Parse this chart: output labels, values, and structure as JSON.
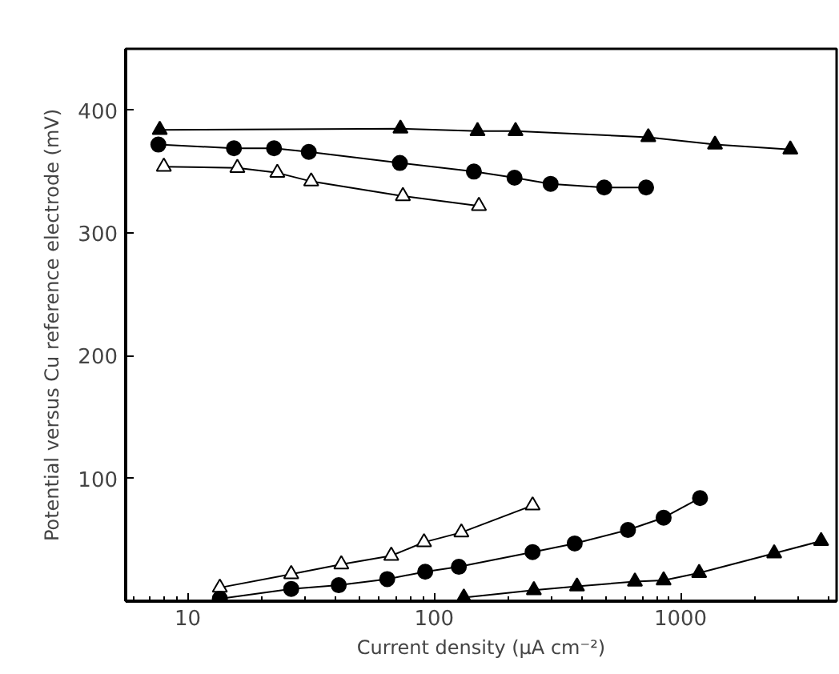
{
  "chart_data": {
    "type": "line",
    "xlabel": "Current density (μA cm⁻²)",
    "ylabel": "Potential versus Cu reference electrode (mV)",
    "log": "x",
    "grid": false,
    "line_style": "solid",
    "xlim": [
      5.6,
      4300
    ],
    "ylim": [
      0,
      450
    ],
    "xticks": [
      10,
      100,
      1000
    ],
    "yticks": [
      100,
      200,
      300,
      400
    ],
    "series": [
      {
        "color": "#000000",
        "marker": "triangle",
        "x": [
          7.7,
          73,
          150,
          214,
          740,
          1380,
          2790
        ],
        "values": [
          384,
          385,
          383,
          383,
          378,
          372,
          368
        ]
      },
      {
        "color": "#000000",
        "marker": "circle",
        "x": [
          7.6,
          15.4,
          22.4,
          31,
          72.6,
          145,
          212,
          297,
          490,
          725
        ],
        "values": [
          372,
          369,
          369,
          366,
          357,
          350,
          345,
          340,
          337,
          337
        ]
      },
      {
        "color": "#ffffff",
        "marker": "triangle",
        "x": [
          8.0,
          15.9,
          23.1,
          31.7,
          74.7,
          152
        ],
        "values": [
          354,
          353,
          349,
          342,
          330,
          322
        ]
      },
      {
        "color": "#ffffff",
        "marker": "triangle",
        "x": [
          13.5,
          26.3,
          42,
          67,
          91,
          129,
          251
        ],
        "values": [
          11,
          22,
          30,
          37,
          48,
          56,
          78
        ]
      },
      {
        "color": "#000000",
        "marker": "circle",
        "x": [
          13.5,
          26.3,
          41,
          64.5,
          92,
          126,
          251,
          372,
          612,
          854,
          1200
        ],
        "values": [
          2,
          10,
          13,
          18,
          24,
          28,
          40,
          47,
          58,
          68,
          84
        ]
      },
      {
        "color": "#000000",
        "marker": "triangle",
        "x": [
          132,
          254,
          380,
          653,
          854,
          1190,
          2400,
          3720
        ],
        "values": [
          3,
          9,
          12,
          16,
          17,
          23,
          39,
          49
        ]
      }
    ]
  }
}
